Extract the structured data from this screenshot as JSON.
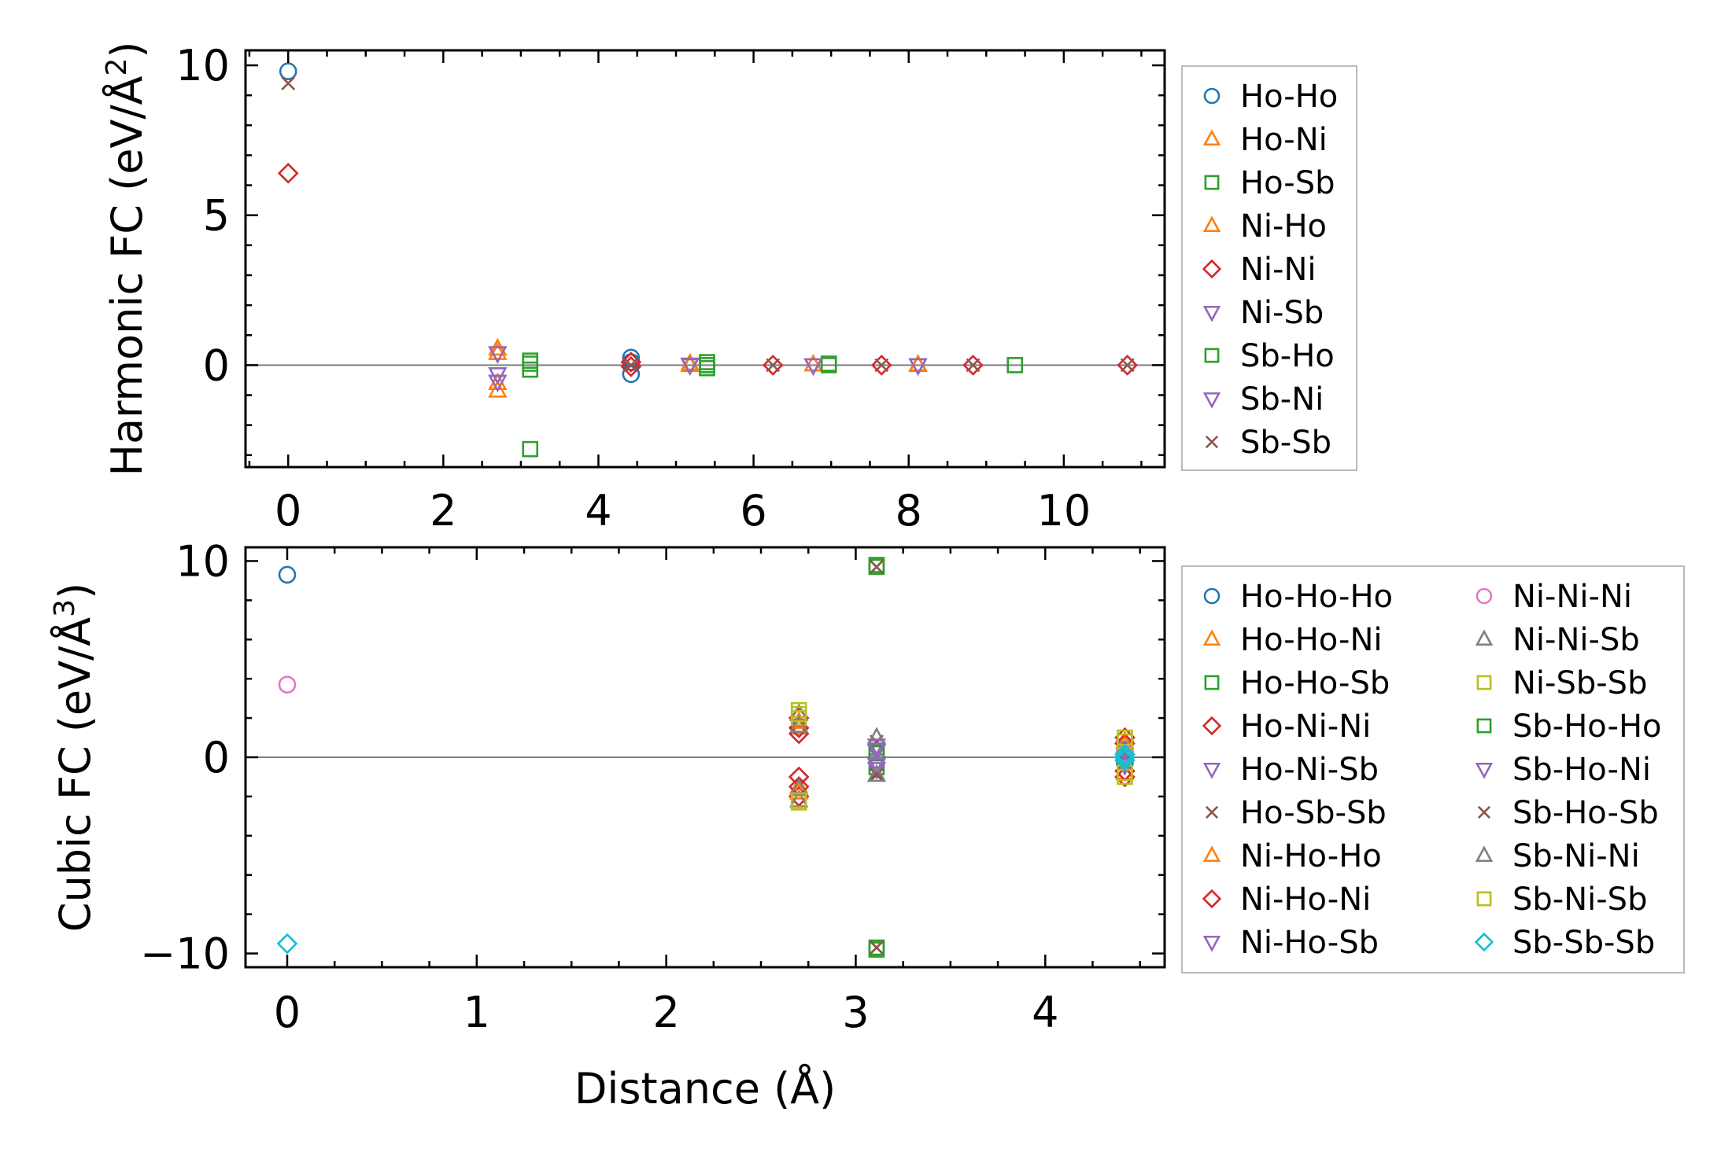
{
  "chart_data": [
    {
      "type": "scatter",
      "panel": "top",
      "ylabel": "Harmonic FC (eV/Å²)",
      "ylabel_main": "Harmonic FC (eV/Å",
      "ylabel_sup": "2",
      "ylabel_close": ")",
      "xlabel": "",
      "xlim": [
        -0.55,
        11.3
      ],
      "ylim": [
        -3.4,
        10.5
      ],
      "xticks": [
        0,
        2,
        4,
        6,
        8,
        10
      ],
      "xtick_labels": [
        "0",
        "2",
        "4",
        "6",
        "8",
        "10"
      ],
      "yticks": [
        0,
        5,
        10
      ],
      "ytick_labels": [
        "0",
        "5",
        "10"
      ],
      "zero_line": true,
      "legend_columns": 1,
      "legend_location": "outside right",
      "series": [
        {
          "name": "Ho-Ho",
          "marker": "o",
          "color": "#1f77b4",
          "points": [
            [
              0,
              9.8
            ],
            [
              4.42,
              0.25
            ],
            [
              4.42,
              -0.3
            ],
            [
              4.42,
              0.1
            ]
          ]
        },
        {
          "name": "Ho-Ni",
          "marker": "^",
          "color": "#ff7f0e",
          "points": [
            [
              2.7,
              0.55
            ],
            [
              2.7,
              -0.85
            ],
            [
              5.18,
              0.05
            ],
            [
              6.77,
              0.02
            ],
            [
              8.12,
              0.0
            ]
          ]
        },
        {
          "name": "Ho-Sb",
          "marker": "s",
          "color": "#2ca02c",
          "points": [
            [
              3.12,
              0.15
            ],
            [
              3.12,
              -0.15
            ],
            [
              3.12,
              -2.8
            ],
            [
              5.4,
              0.1
            ],
            [
              5.4,
              -0.1
            ],
            [
              6.97,
              0.0
            ],
            [
              9.37,
              0.0
            ]
          ]
        },
        {
          "name": "Ni-Ho",
          "marker": "^",
          "color": "#ff7f0e",
          "points": [
            [
              2.7,
              0.4
            ],
            [
              2.7,
              -0.6
            ],
            [
              5.18,
              0.0
            ],
            [
              8.12,
              0.02
            ]
          ]
        },
        {
          "name": "Ni-Ni",
          "marker": "D",
          "color": "#d62728",
          "points": [
            [
              0,
              6.4
            ],
            [
              4.42,
              0.1
            ],
            [
              4.42,
              -0.05
            ],
            [
              6.25,
              0.0
            ],
            [
              7.65,
              0.0
            ],
            [
              8.83,
              0.0
            ],
            [
              10.82,
              0.0
            ]
          ]
        },
        {
          "name": "Ni-Sb",
          "marker": "v",
          "color": "#9467bd",
          "points": [
            [
              2.7,
              0.4
            ],
            [
              2.7,
              -0.55
            ],
            [
              5.18,
              0.0
            ],
            [
              6.77,
              0.0
            ],
            [
              8.12,
              0.0
            ]
          ]
        },
        {
          "name": "Sb-Ho",
          "marker": "s",
          "color": "#2ca02c",
          "points": [
            [
              3.12,
              0.05
            ],
            [
              5.4,
              0.0
            ],
            [
              6.97,
              0.05
            ]
          ]
        },
        {
          "name": "Sb-Ni",
          "marker": "v",
          "color": "#9467bd",
          "points": [
            [
              2.7,
              -0.3
            ],
            [
              5.18,
              0.02
            ],
            [
              6.77,
              0.0
            ],
            [
              8.12,
              0.0
            ]
          ]
        },
        {
          "name": "Sb-Sb",
          "marker": "x",
          "color": "#8c564b",
          "points": [
            [
              0,
              9.4
            ],
            [
              4.42,
              0.0
            ],
            [
              6.25,
              0.0
            ],
            [
              7.65,
              0.0
            ],
            [
              8.83,
              0.0
            ],
            [
              10.82,
              0.0
            ]
          ]
        }
      ]
    },
    {
      "type": "scatter",
      "panel": "bottom",
      "ylabel": "Cubic FC (eV/Å³)",
      "ylabel_main": "Cubic FC (eV/Å",
      "ylabel_sup": "3",
      "ylabel_close": ")",
      "xlabel": "Distance (Å)",
      "xlim": [
        -0.22,
        4.63
      ],
      "ylim": [
        -10.7,
        10.7
      ],
      "xticks": [
        0,
        1,
        2,
        3,
        4
      ],
      "xtick_labels": [
        "0",
        "1",
        "2",
        "3",
        "4"
      ],
      "yticks": [
        10,
        0,
        -10
      ],
      "ytick_labels": [
        "10",
        "0",
        "−10"
      ],
      "zero_line": true,
      "legend_columns": 2,
      "legend_location": "outside right",
      "series": [
        {
          "name": "Ho-Ho-Ho",
          "marker": "o",
          "color": "#1f77b4",
          "points": [
            [
              0,
              9.3
            ],
            [
              4.42,
              0.3
            ],
            [
              4.42,
              -0.3
            ]
          ]
        },
        {
          "name": "Ho-Ho-Ni",
          "marker": "^",
          "color": "#ff7f0e",
          "points": [
            [
              2.7,
              1.5
            ],
            [
              2.7,
              -1.5
            ],
            [
              4.42,
              0.8
            ],
            [
              4.42,
              -0.8
            ]
          ]
        },
        {
          "name": "Ho-Ho-Sb",
          "marker": "s",
          "color": "#2ca02c",
          "points": [
            [
              3.11,
              9.7
            ],
            [
              3.11,
              -9.7
            ],
            [
              3.11,
              0.5
            ],
            [
              3.11,
              -0.5
            ]
          ]
        },
        {
          "name": "Ho-Ni-Ni",
          "marker": "D",
          "color": "#d62728",
          "points": [
            [
              2.7,
              2.0
            ],
            [
              2.7,
              1.2
            ],
            [
              2.7,
              -1.0
            ],
            [
              2.7,
              -2.0
            ],
            [
              4.42,
              1.0
            ],
            [
              4.42,
              -1.0
            ]
          ]
        },
        {
          "name": "Ho-Ni-Sb",
          "marker": "v",
          "color": "#9467bd",
          "points": [
            [
              3.11,
              0.3
            ],
            [
              3.11,
              -0.3
            ],
            [
              4.42,
              0.5
            ]
          ]
        },
        {
          "name": "Ho-Sb-Sb",
          "marker": "x",
          "color": "#8c564b",
          "points": [
            [
              3.11,
              9.7
            ],
            [
              3.11,
              -9.7
            ],
            [
              3.11,
              0.8
            ],
            [
              3.11,
              -0.8
            ]
          ]
        },
        {
          "name": "Ni-Ho-Ho",
          "marker": "^",
          "color": "#ff7f0e",
          "points": [
            [
              2.7,
              1.8
            ],
            [
              2.7,
              -1.8
            ],
            [
              4.42,
              0.6
            ]
          ]
        },
        {
          "name": "Ni-Ho-Ni",
          "marker": "D",
          "color": "#d62728",
          "points": [
            [
              2.7,
              1.5
            ],
            [
              2.7,
              -1.5
            ],
            [
              4.42,
              0.7
            ],
            [
              4.42,
              -0.7
            ]
          ]
        },
        {
          "name": "Ni-Ho-Sb",
          "marker": "v",
          "color": "#9467bd",
          "points": [
            [
              3.11,
              0.6
            ],
            [
              3.11,
              -0.6
            ],
            [
              4.42,
              -0.4
            ]
          ]
        },
        {
          "name": "Ni-Ni-Ni",
          "marker": "o",
          "color": "#e377c2",
          "points": [
            [
              0,
              3.7
            ],
            [
              4.42,
              0.2
            ]
          ]
        },
        {
          "name": "Ni-Ni-Sb",
          "marker": "^",
          "color": "#7f7f7f",
          "points": [
            [
              2.7,
              2.2
            ],
            [
              2.7,
              -2.2
            ],
            [
              3.11,
              1.0
            ]
          ]
        },
        {
          "name": "Ni-Sb-Sb",
          "marker": "s",
          "color": "#bcbd22",
          "points": [
            [
              2.7,
              2.4
            ],
            [
              2.7,
              2.0
            ],
            [
              2.7,
              -2.3
            ],
            [
              4.42,
              1.0
            ],
            [
              4.42,
              -1.0
            ]
          ]
        },
        {
          "name": "Sb-Ho-Ho",
          "marker": "s",
          "color": "#2ca02c",
          "points": [
            [
              3.11,
              9.8
            ],
            [
              3.11,
              -9.8
            ],
            [
              3.11,
              0.2
            ]
          ]
        },
        {
          "name": "Sb-Ho-Ni",
          "marker": "v",
          "color": "#9467bd",
          "points": [
            [
              3.11,
              0.4
            ],
            [
              3.11,
              -0.4
            ],
            [
              4.42,
              -0.2
            ]
          ]
        },
        {
          "name": "Sb-Ho-Sb",
          "marker": "x",
          "color": "#8c564b",
          "points": [
            [
              3.11,
              9.7
            ],
            [
              3.11,
              -9.7
            ],
            [
              3.11,
              -0.9
            ]
          ]
        },
        {
          "name": "Sb-Ni-Ni",
          "marker": "^",
          "color": "#7f7f7f",
          "points": [
            [
              2.7,
              1.6
            ],
            [
              2.7,
              -1.6
            ],
            [
              3.11,
              -0.9
            ]
          ]
        },
        {
          "name": "Sb-Ni-Sb",
          "marker": "s",
          "color": "#bcbd22",
          "points": [
            [
              2.7,
              2.2
            ],
            [
              2.7,
              -2.2
            ],
            [
              4.42,
              0.8
            ],
            [
              4.42,
              -0.8
            ]
          ]
        },
        {
          "name": "Sb-Sb-Sb",
          "marker": "D",
          "color": "#17becf",
          "points": [
            [
              0,
              -9.5
            ],
            [
              4.42,
              0.0
            ],
            [
              4.42,
              0.15
            ],
            [
              4.42,
              -0.15
            ]
          ]
        }
      ]
    }
  ]
}
